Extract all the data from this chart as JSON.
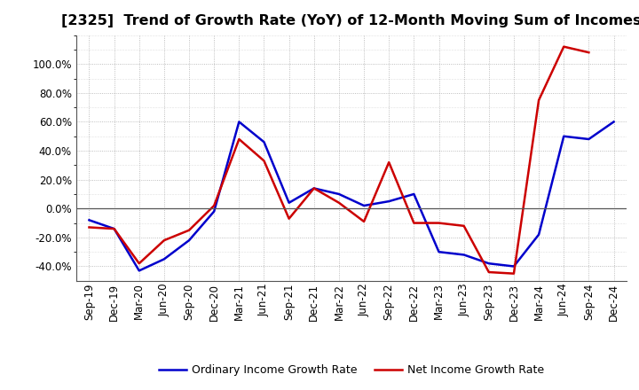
{
  "title": "[2325]  Trend of Growth Rate (YoY) of 12-Month Moving Sum of Incomes",
  "x_labels": [
    "Sep-19",
    "Dec-19",
    "Mar-20",
    "Jun-20",
    "Sep-20",
    "Dec-20",
    "Mar-21",
    "Jun-21",
    "Sep-21",
    "Dec-21",
    "Mar-22",
    "Jun-22",
    "Sep-22",
    "Dec-22",
    "Mar-23",
    "Jun-23",
    "Sep-23",
    "Dec-23",
    "Mar-24",
    "Jun-24",
    "Sep-24",
    "Dec-24"
  ],
  "ordinary_income": [
    -0.08,
    -0.14,
    -0.43,
    -0.35,
    -0.22,
    -0.02,
    0.6,
    0.46,
    0.04,
    0.14,
    0.1,
    0.02,
    0.05,
    0.1,
    -0.3,
    -0.32,
    -0.38,
    -0.4,
    -0.18,
    0.5,
    0.48,
    0.6
  ],
  "net_income": [
    -0.13,
    -0.14,
    -0.38,
    -0.22,
    -0.15,
    0.02,
    0.48,
    0.33,
    -0.07,
    0.14,
    0.04,
    -0.09,
    0.32,
    -0.1,
    -0.1,
    -0.12,
    -0.44,
    -0.45,
    0.75,
    1.12,
    1.08,
    null
  ],
  "ylim": [
    -0.5,
    1.2
  ],
  "yticks": [
    -0.4,
    -0.2,
    0.0,
    0.2,
    0.4,
    0.6,
    0.8,
    1.0
  ],
  "ordinary_color": "#0000cc",
  "net_color": "#cc0000",
  "legend_ordinary": "Ordinary Income Growth Rate",
  "legend_net": "Net Income Growth Rate",
  "background_color": "#ffffff",
  "grid_color": "#888888",
  "title_fontsize": 11.5,
  "tick_fontsize": 8.5,
  "legend_fontsize": 9
}
